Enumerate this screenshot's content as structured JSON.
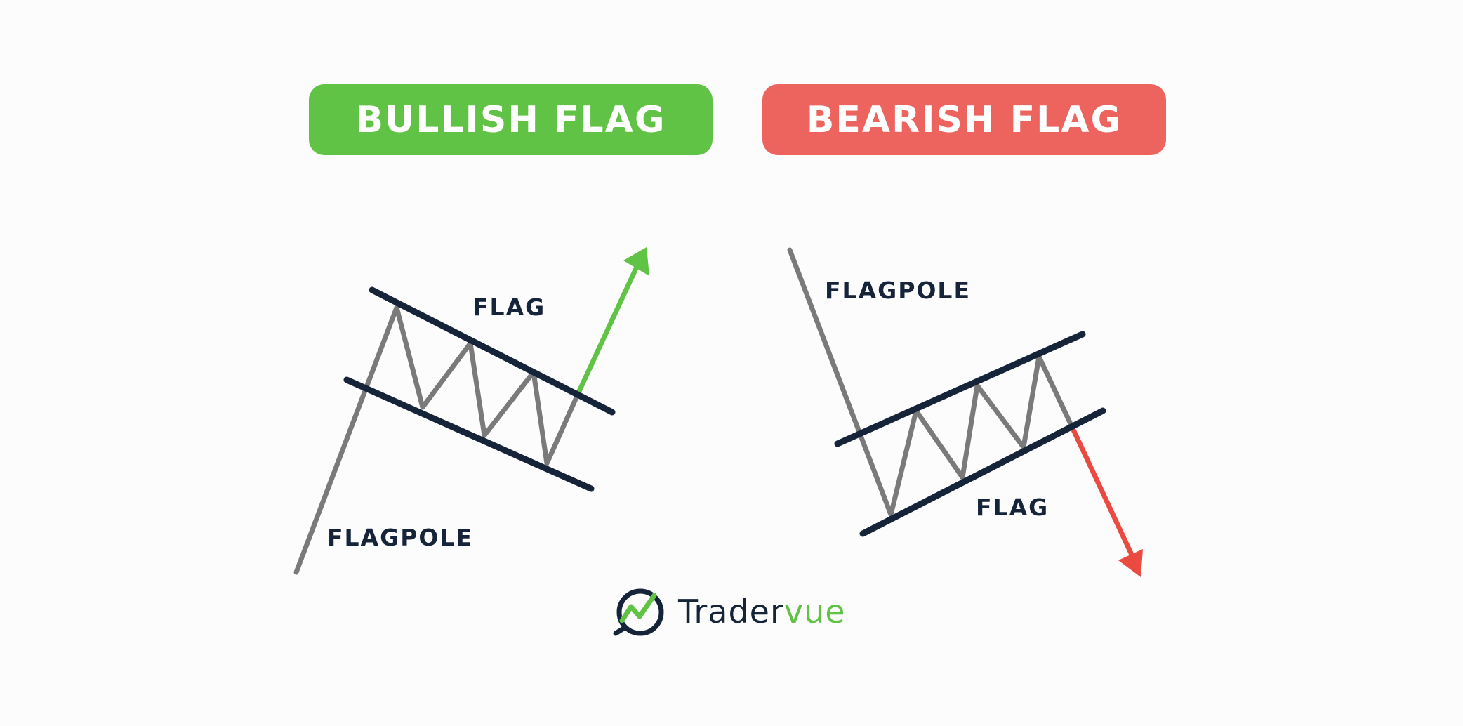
{
  "bullish": {
    "title": "BULLISH FLAG",
    "flag_label": "FLAG",
    "pole_label": "FLAGPOLE"
  },
  "bearish": {
    "title": "BEARISH FLAG",
    "flag_label": "FLAG",
    "pole_label": "FLAGPOLE"
  },
  "brand": {
    "name_dark": "Trader",
    "name_green": "vue",
    "icon": "magnifier-chart-logo-icon"
  },
  "colors": {
    "green": "#61c346",
    "red": "#ed645f",
    "arrow_red": "#ea4a40",
    "navy": "#16243a",
    "gray": "#7a7a7a",
    "background": "#fcfcfc"
  }
}
